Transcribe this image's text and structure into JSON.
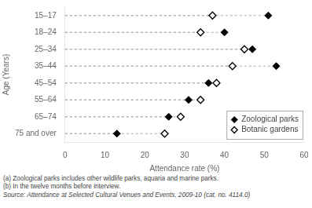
{
  "chart_data": {
    "type": "dot",
    "orientation": "horizontal",
    "categories": [
      "15–17",
      "18–24",
      "25–34",
      "35–44",
      "45–54",
      "55–64",
      "65–74",
      "75 and over"
    ],
    "series": [
      {
        "name": "Zoological parks",
        "color": "#000000",
        "marker": "diamond",
        "values": [
          51,
          40,
          47,
          53,
          36,
          31,
          26,
          13
        ]
      },
      {
        "name": "Botanic gardens",
        "color": "#000000",
        "marker": "open-diamond",
        "values": [
          37,
          34,
          45,
          42,
          38,
          34,
          29,
          25
        ]
      }
    ],
    "line_style": "dashed",
    "xlabel": "Attendance rate (%)",
    "ylabel": "Age (Years)",
    "xlim": [
      0,
      60
    ],
    "xticks": [
      0,
      10,
      20,
      30,
      40,
      50,
      60
    ],
    "grid": false,
    "legend": "lower right",
    "annotations": [
      "(a) Zoological parks includes other wildlife parks, aquaria and marine parks.",
      "(b) In the twelve months before interview.",
      "Source: Attendance at Selected Cultural Venues and Events, 2009-10 (cat.  no.  4114.0)"
    ]
  }
}
